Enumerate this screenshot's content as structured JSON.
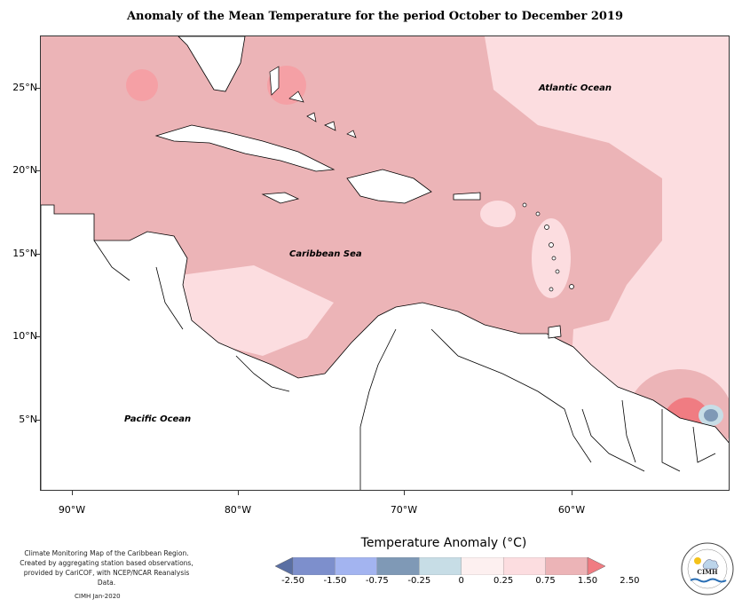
{
  "title": "Anomaly of the Mean Temperature for the period October to December 2019",
  "map": {
    "lat_labels": [
      "25°N",
      "20°N",
      "15°N",
      "10°N",
      "5°N"
    ],
    "lon_labels": [
      "90°W",
      "80°W",
      "70°W",
      "60°W"
    ],
    "place_labels": {
      "atlantic": "Atlantic Ocean",
      "caribbean": "Caribbean Sea",
      "pacific": "Pacific Ocean"
    },
    "colors": {
      "light_pink": "#fcdde0",
      "mid_pink": "#ecb4b7",
      "salmon": "#f5a0a5",
      "red": "#f07c82",
      "pale": "#fdf0f0",
      "light_blue": "#c7dde6",
      "steel_blue": "#7f99b6"
    }
  },
  "legend": {
    "title": "Temperature Anomaly (°C)",
    "ticks": [
      "-2.50",
      "-1.50",
      "-0.75",
      "-0.25",
      "0",
      "0.25",
      "0.75",
      "1.50",
      "2.50"
    ],
    "colors": [
      "#5a6fa3",
      "#7d8fcc",
      "#a3b4f0",
      "#7f99b6",
      "#c7dde6",
      "#fdf0f0",
      "#fcdde0",
      "#ecb4b7",
      "#f07c82"
    ]
  },
  "footnote": {
    "line1": "Climate Monitoring Map of the Caribbean Region.",
    "line2": "Created by aggregating station based observations,",
    "line3": "provided by CariCOF, with NCEP/NCAR Reanalysis Data.",
    "credit": "CIMH  Jan-2020"
  },
  "logo": {
    "text": "CIMH"
  }
}
